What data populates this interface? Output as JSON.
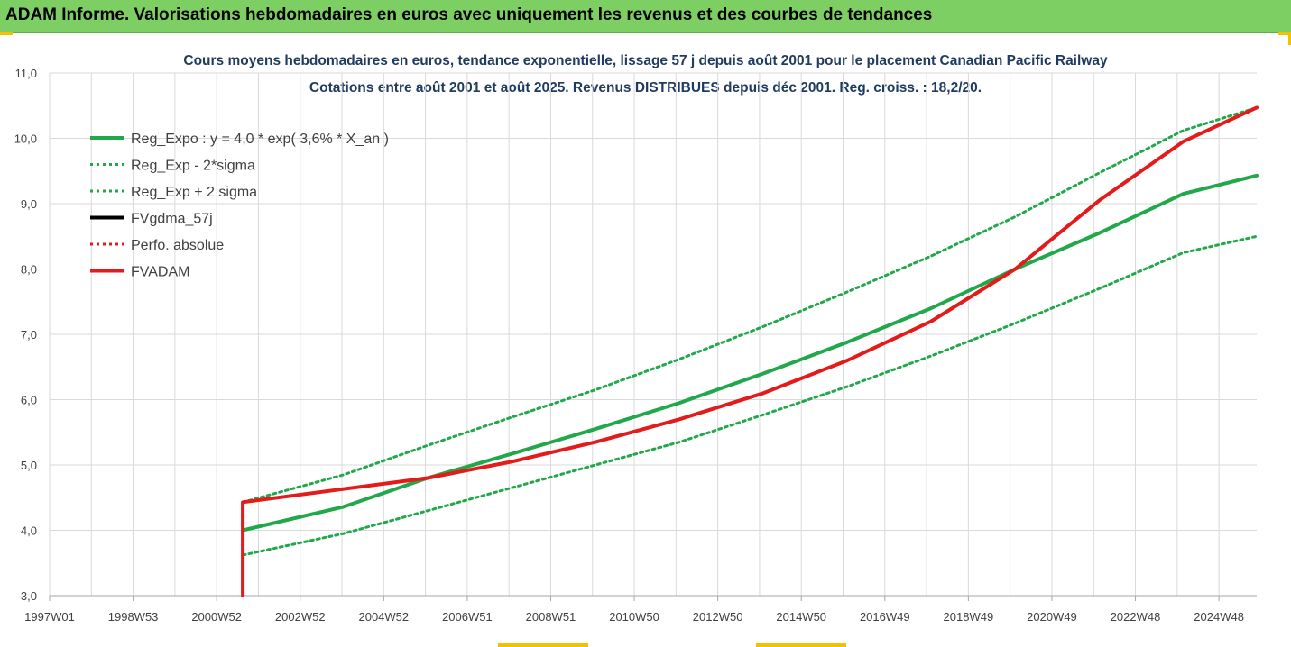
{
  "header": {
    "title": "ADAM Informe. Valorisations hebdomadaires en euros avec uniquement les revenus et des courbes de tendances"
  },
  "colors": {
    "header_bg": "#7ecf63",
    "trend_green": "#21a84a",
    "adam_red": "#e31b1b",
    "title_blue": "#1f3b5f",
    "grid": "#d9d9d9"
  },
  "chart_data": {
    "type": "line",
    "title": "Cours moyens hebdomadaires en euros, tendance exponentielle, lissage 57 j depuis août 2001 pour le placement Canadian Pacific Railway",
    "subtitle": "Cotations entre août 2001 et août 2025. Revenus DISTRIBUES depuis déc 2001. Reg. croiss. : 18,2/20.",
    "x_tick_labels": [
      "1997W01",
      "1998W53",
      "2000W52",
      "2002W52",
      "2004W52",
      "2006W51",
      "2008W51",
      "2010W50",
      "2012W50",
      "2014W50",
      "2016W49",
      "2018W49",
      "2020W49",
      "2022W48",
      "2024W48"
    ],
    "x_range": [
      1997.0,
      2025.75
    ],
    "ylim": [
      3.0,
      11.0
    ],
    "y_tick_labels": [
      "3,0",
      "4,0",
      "5,0",
      "6,0",
      "7,0",
      "8,0",
      "9,0",
      "10,0",
      "11,0"
    ],
    "grid": true,
    "legend_position": "top-left",
    "legend": [
      {
        "name": "Reg_Expo : y = 4,0 * exp( 3,6% *  X_an )",
        "color": "#21a84a",
        "style": "solid"
      },
      {
        "name": "Reg_Exp - 2*sigma",
        "color": "#21a84a",
        "style": "dotted"
      },
      {
        "name": "Reg_Exp + 2 sigma",
        "color": "#21a84a",
        "style": "dotted"
      },
      {
        "name": "FVgdma_57j",
        "color": "#000000",
        "style": "solid"
      },
      {
        "name": "Perfo. absolue",
        "color": "#e31b1b",
        "style": "dotted"
      },
      {
        "name": "FVADAM",
        "color": "#e31b1b",
        "style": "solid"
      }
    ],
    "series": [
      {
        "name": "Reg_Expo : y = 4,0 * exp( 3,6% *  X_an )",
        "x": [
          2001.6,
          2004.0,
          2006.0,
          2008.0,
          2010.0,
          2012.0,
          2014.0,
          2016.0,
          2018.0,
          2020.0,
          2022.0,
          2024.0,
          2025.75
        ],
        "y": [
          4.0,
          4.36,
          4.8,
          5.17,
          5.55,
          5.95,
          6.4,
          6.88,
          7.4,
          8.0,
          8.55,
          9.15,
          9.43
        ]
      },
      {
        "name": "Reg_Exp - 2*sigma",
        "x": [
          2001.6,
          2004.0,
          2006.0,
          2008.0,
          2010.0,
          2012.0,
          2014.0,
          2016.0,
          2018.0,
          2020.0,
          2022.0,
          2024.0,
          2025.75
        ],
        "y": [
          3.62,
          3.95,
          4.3,
          4.65,
          5.0,
          5.35,
          5.77,
          6.2,
          6.67,
          7.17,
          7.7,
          8.25,
          8.5
        ]
      },
      {
        "name": "Reg_Exp + 2 sigma",
        "x": [
          2001.6,
          2004.0,
          2006.0,
          2008.0,
          2010.0,
          2012.0,
          2014.0,
          2016.0,
          2018.0,
          2020.0,
          2022.0,
          2024.0,
          2025.75
        ],
        "y": [
          4.43,
          4.85,
          5.3,
          5.73,
          6.15,
          6.62,
          7.12,
          7.65,
          8.2,
          8.8,
          9.47,
          10.12,
          10.47
        ]
      },
      {
        "name": "FVADAM",
        "x": [
          2001.6,
          2001.6,
          2006.0,
          2008.0,
          2010.0,
          2012.0,
          2014.0,
          2016.0,
          2018.0,
          2020.0,
          2022.0,
          2024.0,
          2025.75
        ],
        "y": [
          3.0,
          4.43,
          4.8,
          5.05,
          5.35,
          5.7,
          6.1,
          6.6,
          7.2,
          8.0,
          9.05,
          9.95,
          10.47
        ]
      }
    ]
  }
}
